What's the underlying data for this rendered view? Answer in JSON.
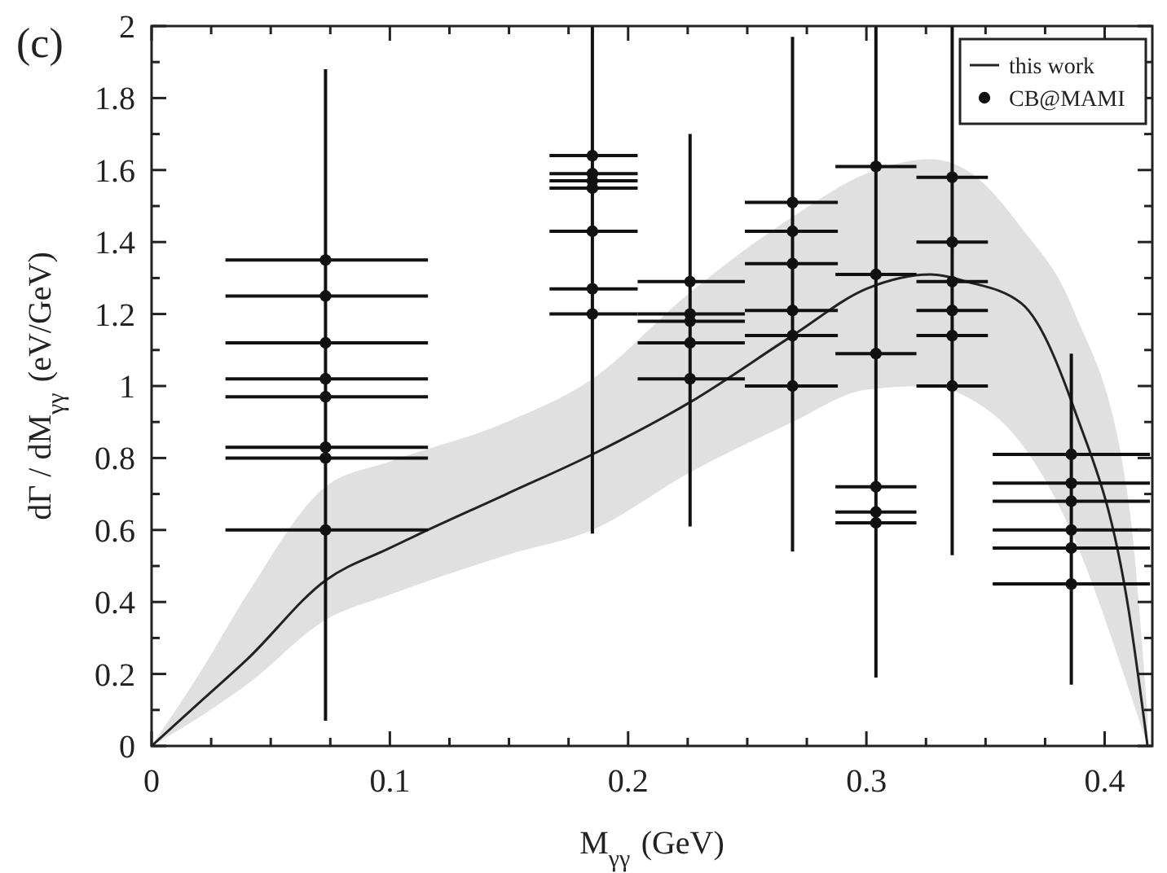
{
  "chart_data": {
    "type": "scatter",
    "annotations": [
      "(c)"
    ],
    "xlabel": "M$_{γγ}$ (GeV)",
    "ylabel": "dΓ / dM$_{γγ}$ (eV/GeV)",
    "xlim": [
      0,
      0.42
    ],
    "ylim": [
      0,
      2
    ],
    "xticks": [
      0,
      {
        "value": 0.025,
        "label": null
      },
      {
        "value": 0.05,
        "label": null
      },
      {
        "value": 0.075,
        "label": null
      },
      0.1,
      {
        "value": 0.125,
        "label": null
      },
      {
        "value": 0.15,
        "label": null
      },
      {
        "value": 0.175,
        "label": null
      },
      0.2,
      {
        "value": 0.225,
        "label": null
      },
      {
        "value": 0.25,
        "label": null
      },
      {
        "value": 0.275,
        "label": null
      },
      0.3,
      {
        "value": 0.325,
        "label": null
      },
      {
        "value": 0.35,
        "label": null
      },
      {
        "value": 0.375,
        "label": null
      },
      0.4
    ],
    "yticks": [
      0,
      {
        "value": 0.1,
        "label": null
      },
      0.2,
      {
        "value": 0.3,
        "label": null
      },
      0.4,
      {
        "value": 0.5,
        "label": null
      },
      0.6,
      {
        "value": 0.7,
        "label": null
      },
      0.8,
      {
        "value": 0.9,
        "label": null
      },
      1,
      {
        "value": 1.1,
        "label": null
      },
      1.2,
      {
        "value": 1.3,
        "label": null
      },
      1.4,
      {
        "value": 1.5,
        "label": null
      },
      1.6,
      {
        "value": 1.7,
        "label": null
      },
      1.8,
      {
        "value": 1.9,
        "label": null
      },
      2
    ],
    "grid": false,
    "legend": "top right",
    "series": [
      {
        "type": "line",
        "name": "this work",
        "color": "#222222",
        "line_style": "solid",
        "marker": "none",
        "x": [
          0,
          0.02,
          0.04,
          0.073,
          0.1,
          0.149,
          0.185,
          0.226,
          0.269,
          0.3,
          0.327,
          0.342,
          0.365,
          0.387,
          0.41,
          0.418
        ],
        "values": [
          0,
          0.12,
          0.24,
          0.46,
          0.55,
          0.7,
          0.81,
          0.955,
          1.14,
          1.27,
          1.31,
          1.29,
          1.23,
          0.94,
          0.38,
          0
        ],
        "lower": [
          0,
          0.08,
          0.17,
          0.35,
          0.42,
          0.53,
          0.6,
          0.76,
          0.9,
          0.99,
          1.0,
          0.97,
          0.84,
          0.58,
          0.16,
          0
        ],
        "upper": [
          0,
          0.2,
          0.42,
          0.72,
          0.79,
          0.9,
          1.02,
          1.26,
          1.47,
          1.59,
          1.63,
          1.6,
          1.44,
          1.21,
          0.68,
          0.08
        ]
      },
      {
        "name": "CB@MAMI",
        "color": "#111111",
        "marker": "circle",
        "x": [
          0.073,
          0.073,
          0.073,
          0.073,
          0.073,
          0.073,
          0.073,
          0.073,
          0.185,
          0.185,
          0.185,
          0.185,
          0.185,
          0.185,
          0.185,
          0.226,
          0.226,
          0.226,
          0.226,
          0.226,
          0.269,
          0.269,
          0.269,
          0.269,
          0.269,
          0.269,
          0.304,
          0.304,
          0.304,
          0.304,
          0.304,
          0.304,
          0.336,
          0.336,
          0.336,
          0.336,
          0.336,
          0.336,
          0.386,
          0.386,
          0.386,
          0.386,
          0.386,
          0.386
        ],
        "values": [
          1.35,
          1.25,
          1.12,
          1.02,
          0.97,
          0.83,
          0.8,
          0.6,
          1.64,
          1.59,
          1.57,
          1.55,
          1.43,
          1.27,
          1.2,
          1.29,
          1.2,
          1.18,
          1.12,
          1.02,
          1.51,
          1.43,
          1.34,
          1.21,
          1.14,
          1.0,
          1.61,
          1.31,
          1.09,
          0.72,
          0.65,
          0.62,
          1.58,
          1.4,
          1.29,
          1.21,
          1.14,
          1.0,
          0.81,
          0.73,
          0.68,
          0.6,
          0.55,
          0.45
        ],
        "errors": [
          [
            0.07,
            1.88
          ],
          null,
          null,
          null,
          null,
          null,
          null,
          null,
          [
            0.59,
            2
          ],
          null,
          null,
          null,
          null,
          null,
          null,
          [
            0.61,
            1.7
          ],
          null,
          null,
          null,
          null,
          [
            0.54,
            1.97
          ],
          null,
          null,
          null,
          null,
          null,
          [
            0.19,
            2
          ],
          null,
          null,
          null,
          null,
          null,
          [
            0.53,
            2
          ],
          null,
          null,
          null,
          null,
          null,
          [
            0.17,
            1.09
          ],
          null,
          null,
          null,
          null,
          null
        ],
        "xerrors": [
          [
            0.031,
            0.116
          ],
          [
            0.031,
            0.116
          ],
          [
            0.031,
            0.116
          ],
          [
            0.031,
            0.116
          ],
          [
            0.031,
            0.116
          ],
          [
            0.031,
            0.116
          ],
          [
            0.031,
            0.116
          ],
          [
            0.031,
            0.116
          ],
          [
            0.167,
            0.204
          ],
          [
            0.167,
            0.204
          ],
          [
            0.167,
            0.204
          ],
          [
            0.167,
            0.204
          ],
          [
            0.167,
            0.204
          ],
          [
            0.167,
            0.204
          ],
          [
            0.167,
            0.204
          ],
          [
            0.204,
            0.249
          ],
          [
            0.204,
            0.249
          ],
          [
            0.204,
            0.249
          ],
          [
            0.204,
            0.249
          ],
          [
            0.204,
            0.249
          ],
          [
            0.249,
            0.288
          ],
          [
            0.249,
            0.288
          ],
          [
            0.249,
            0.288
          ],
          [
            0.249,
            0.288
          ],
          [
            0.249,
            0.288
          ],
          [
            0.249,
            0.288
          ],
          [
            0.287,
            0.321
          ],
          [
            0.287,
            0.321
          ],
          [
            0.287,
            0.321
          ],
          [
            0.287,
            0.321
          ],
          [
            0.287,
            0.321
          ],
          [
            0.287,
            0.321
          ],
          [
            0.321,
            0.351
          ],
          [
            0.321,
            0.351
          ],
          [
            0.321,
            0.351
          ],
          [
            0.321,
            0.351
          ],
          [
            0.321,
            0.351
          ],
          [
            0.321,
            0.351
          ],
          [
            0.353,
            0.419
          ],
          [
            0.353,
            0.419
          ],
          [
            0.353,
            0.419
          ],
          [
            0.353,
            0.419
          ],
          [
            0.353,
            0.419
          ],
          [
            0.353,
            0.419
          ]
        ]
      }
    ]
  }
}
